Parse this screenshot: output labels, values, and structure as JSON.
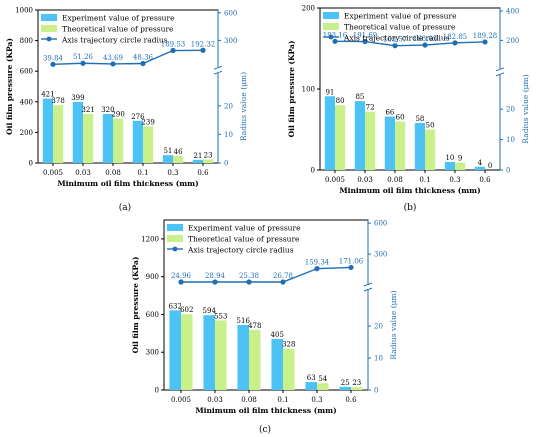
{
  "colors": {
    "experiment": "#4dc3f5",
    "theory": "#c9f08a",
    "line": "#1f6fb5"
  },
  "legend": {
    "experiment": "Experiment value of pressure",
    "theory": "Theoretical value of pressure",
    "line": "Axis trajectory circle radius"
  },
  "chart_data": [
    {
      "type": "bar",
      "caption": "(a)",
      "categories": [
        "0.005",
        "0.03",
        "0.08",
        "0.1",
        "0.3",
        "0.6"
      ],
      "xlabel": "Minimum oil film thickness (mm)",
      "ylabel": "Oil film pressure (KPa)",
      "y2label": "Radius value (μm)",
      "ylim": [
        0,
        1000
      ],
      "yticks": [
        0,
        200,
        400,
        600,
        800,
        1000
      ],
      "y2ticks_low": [
        0,
        10,
        20
      ],
      "y2ticks_high": [
        300,
        600
      ],
      "series": [
        {
          "name": "Experiment value of pressure",
          "values": [
            421,
            399,
            320,
            276,
            51,
            21
          ]
        },
        {
          "name": "Theoretical value of pressure",
          "values": [
            378,
            321,
            290,
            239,
            46,
            23
          ]
        }
      ],
      "line": {
        "name": "Axis trajectory circle radius",
        "values": [
          39.84,
          51.26,
          43.69,
          48.36,
          189.53,
          192.32
        ],
        "labels": [
          "39.84",
          "51.26",
          "43.69",
          "48.36",
          "189.53",
          "192.32"
        ]
      }
    },
    {
      "type": "bar",
      "caption": "(b)",
      "categories": [
        "0.005",
        "0.03",
        "0.08",
        "0.1",
        "0.3",
        "0.6"
      ],
      "xlabel": "Minimum oil film thickness (mm)",
      "ylabel": "Oil film pressure (KPa)",
      "y2label": "Radius value (μm)",
      "ylim": [
        0,
        200
      ],
      "yticks": [
        0,
        100,
        200
      ],
      "y2ticks_low": [
        0,
        10,
        20
      ],
      "y2ticks_high": [
        200,
        400
      ],
      "series": [
        {
          "name": "Experiment value of pressure",
          "values": [
            91,
            85,
            66,
            58,
            10,
            4
          ]
        },
        {
          "name": "Theoretical value of pressure",
          "values": [
            80,
            72,
            60,
            50,
            9,
            0
          ]
        }
      ],
      "line": {
        "name": "Axis trajectory circle radius",
        "values": [
          193.16,
          191.69,
          163.57,
          168.05,
          182.85,
          189.28
        ],
        "labels": [
          "193.16",
          "191.69",
          "163.57",
          "168.05",
          "182.85",
          "189.28"
        ]
      }
    },
    {
      "type": "bar",
      "caption": "(c)",
      "categories": [
        "0.005",
        "0.03",
        "0.08",
        "0.1",
        "0.3",
        "0.6"
      ],
      "xlabel": "Minimum oil film thickness (mm)",
      "ylabel": "Oil film pressure (KPa)",
      "y2label": "Radius value (μm)",
      "ylim": [
        0,
        1350
      ],
      "yticks": [
        0,
        300,
        600,
        900,
        1200
      ],
      "y2ticks_low": [
        0,
        10,
        20
      ],
      "y2ticks_high": [
        300,
        600
      ],
      "series": [
        {
          "name": "Experiment value of pressure",
          "values": [
            632,
            594,
            516,
            405,
            63,
            25
          ]
        },
        {
          "name": "Theoretical value of pressure",
          "values": [
            602,
            553,
            478,
            328,
            54,
            23
          ]
        }
      ],
      "line": {
        "name": "Axis trajectory circle radius",
        "values": [
          24.96,
          28.94,
          25.38,
          26.78,
          159.34,
          171.06
        ],
        "labels": [
          "24.96",
          "28.94",
          "25.38",
          "26.78",
          "159.34",
          "171.06"
        ]
      }
    }
  ]
}
